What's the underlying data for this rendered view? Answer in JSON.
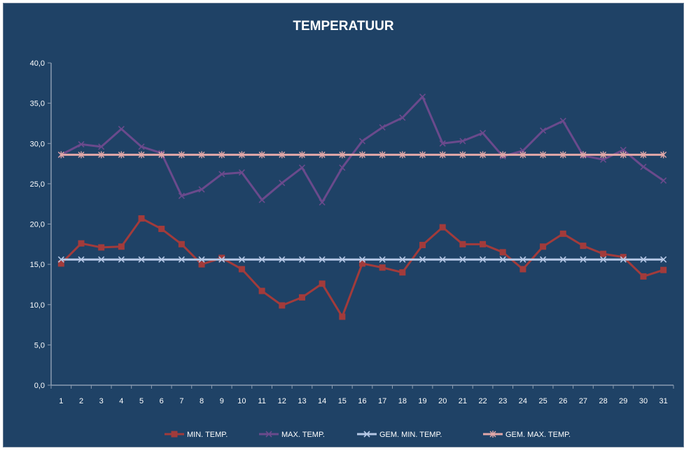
{
  "chart_data": {
    "type": "line",
    "title": "TEMPERATUUR",
    "xlabel": "",
    "ylabel": "",
    "categories": [
      "1",
      "2",
      "3",
      "4",
      "5",
      "6",
      "7",
      "8",
      "9",
      "10",
      "11",
      "12",
      "13",
      "14",
      "15",
      "16",
      "17",
      "18",
      "19",
      "20",
      "21",
      "22",
      "23",
      "24",
      "25",
      "26",
      "27",
      "28",
      "29",
      "30",
      "31"
    ],
    "ylim": [
      0,
      40
    ],
    "y_ticks": [
      "0,0",
      "5,0",
      "10,0",
      "15,0",
      "20,0",
      "25,0",
      "30,0",
      "35,0",
      "40,0"
    ],
    "y_tick_values": [
      0,
      5,
      10,
      15,
      20,
      25,
      30,
      35,
      40
    ],
    "grid": false,
    "legend_position": "bottom",
    "series": [
      {
        "name": "MIN. TEMP.",
        "marker": "square",
        "color": "#a23b3b",
        "values": [
          15.1,
          17.6,
          17.1,
          17.2,
          20.7,
          19.4,
          17.5,
          15.0,
          15.8,
          14.4,
          11.7,
          9.9,
          10.9,
          12.6,
          8.5,
          15.1,
          14.6,
          14.0,
          17.4,
          19.6,
          17.5,
          17.5,
          16.5,
          14.4,
          17.2,
          18.8,
          17.3,
          16.3,
          15.9,
          13.5,
          14.3
        ]
      },
      {
        "name": "MAX. TEMP.",
        "marker": "x",
        "color": "#6a4a8c",
        "values": [
          28.6,
          29.9,
          29.6,
          31.8,
          29.6,
          28.8,
          23.5,
          24.3,
          26.2,
          26.4,
          23.0,
          25.1,
          27.0,
          22.7,
          27.0,
          30.3,
          32.0,
          33.2,
          35.8,
          30.0,
          30.3,
          31.3,
          28.4,
          29.1,
          31.6,
          32.8,
          28.5,
          28.0,
          29.2,
          27.1,
          25.4
        ]
      },
      {
        "name": "GEM. MIN. TEMP.",
        "marker": "x",
        "color": "#b6c8e6",
        "values": [
          15.6,
          15.6,
          15.6,
          15.6,
          15.6,
          15.6,
          15.6,
          15.6,
          15.6,
          15.6,
          15.6,
          15.6,
          15.6,
          15.6,
          15.6,
          15.6,
          15.6,
          15.6,
          15.6,
          15.6,
          15.6,
          15.6,
          15.6,
          15.6,
          15.6,
          15.6,
          15.6,
          15.6,
          15.6,
          15.6,
          15.6
        ]
      },
      {
        "name": "GEM. MAX. TEMP.",
        "marker": "asterisk",
        "color": "#e2a8a8",
        "values": [
          28.6,
          28.6,
          28.6,
          28.6,
          28.6,
          28.6,
          28.6,
          28.6,
          28.6,
          28.6,
          28.6,
          28.6,
          28.6,
          28.6,
          28.6,
          28.6,
          28.6,
          28.6,
          28.6,
          28.6,
          28.6,
          28.6,
          28.6,
          28.6,
          28.6,
          28.6,
          28.6,
          28.6,
          28.6,
          28.6,
          28.6
        ]
      }
    ]
  }
}
